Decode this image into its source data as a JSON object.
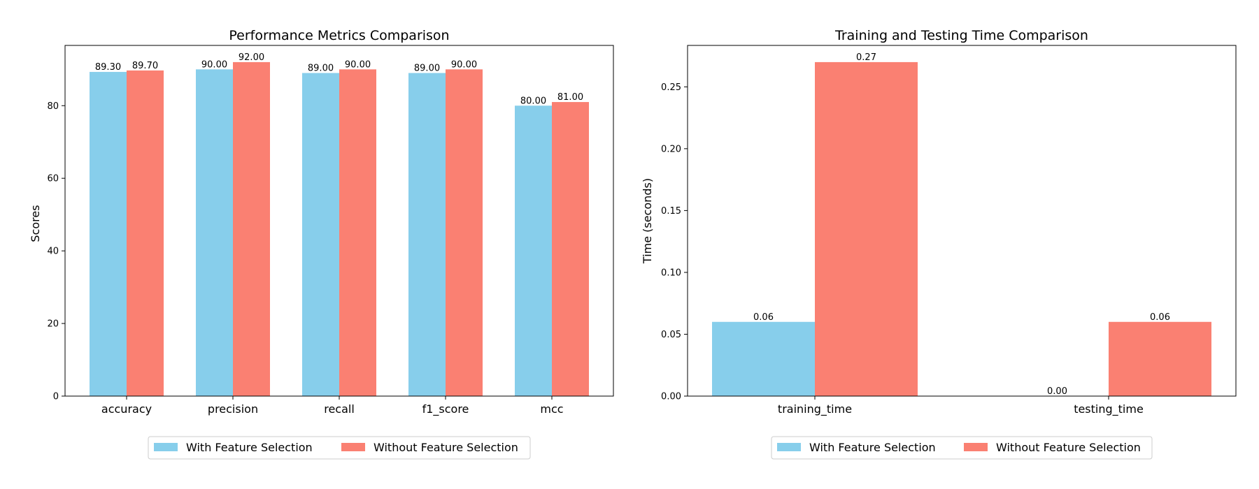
{
  "colors": {
    "with": "#87ceeb",
    "without": "#fa8072"
  },
  "legend": {
    "with_label": "With Feature Selection",
    "without_label": "Without Feature Selection"
  },
  "chart_data": [
    {
      "type": "bar",
      "title": "Performance Metrics Comparison",
      "xlabel": "",
      "ylabel": "Scores",
      "categories": [
        "accuracy",
        "precision",
        "recall",
        "f1_score",
        "mcc"
      ],
      "series": [
        {
          "name": "With Feature Selection",
          "values": [
            89.3,
            90.0,
            89.0,
            89.0,
            80.0
          ],
          "labels": [
            "89.30",
            "90.00",
            "89.00",
            "89.00",
            "80.00"
          ]
        },
        {
          "name": "Without Feature Selection",
          "values": [
            89.7,
            92.0,
            90.0,
            90.0,
            81.0
          ],
          "labels": [
            "89.70",
            "92.00",
            "90.00",
            "90.00",
            "81.00"
          ]
        }
      ],
      "ylim": [
        0,
        96.6
      ],
      "yticks": [
        "0",
        "20",
        "40",
        "60",
        "80"
      ],
      "ytick_values": [
        0,
        20,
        40,
        60,
        80
      ],
      "grid": false,
      "legend_position": "bottom-center"
    },
    {
      "type": "bar",
      "title": "Training and Testing Time Comparison",
      "xlabel": "",
      "ylabel": "Time (seconds)",
      "categories": [
        "training_time",
        "testing_time"
      ],
      "series": [
        {
          "name": "With Feature Selection",
          "values": [
            0.06,
            0.0
          ],
          "labels": [
            "0.06",
            "0.00"
          ]
        },
        {
          "name": "Without Feature Selection",
          "values": [
            0.27,
            0.06
          ],
          "labels": [
            "0.27",
            "0.06"
          ]
        }
      ],
      "ylim": [
        0,
        0.2835
      ],
      "yticks": [
        "0.00",
        "0.05",
        "0.10",
        "0.15",
        "0.20",
        "0.25"
      ],
      "ytick_values": [
        0,
        0.05,
        0.1,
        0.15,
        0.2,
        0.25
      ],
      "grid": false,
      "legend_position": "bottom-center"
    }
  ]
}
